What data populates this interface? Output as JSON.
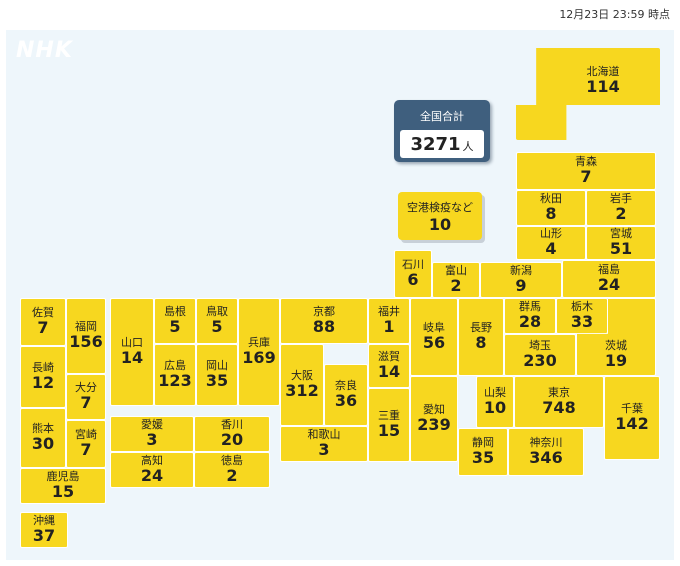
{
  "timestamp": "12月23日 23:59 時点",
  "logo": "NHK",
  "total": {
    "label": "全国合計",
    "value": "3271",
    "unit": "人"
  },
  "airport": {
    "name": "空港検疫など",
    "value": "10"
  },
  "prefectures": {
    "hokkaido": {
      "name": "北海道",
      "value": "114"
    },
    "aomori": {
      "name": "青森",
      "value": "7"
    },
    "akita": {
      "name": "秋田",
      "value": "8"
    },
    "iwate": {
      "name": "岩手",
      "value": "2"
    },
    "yamagata": {
      "name": "山形",
      "value": "4"
    },
    "miyagi": {
      "name": "宮城",
      "value": "51"
    },
    "ishikawa": {
      "name": "石川",
      "value": "6"
    },
    "toyama": {
      "name": "富山",
      "value": "2"
    },
    "niigata": {
      "name": "新潟",
      "value": "9"
    },
    "fukushima": {
      "name": "福島",
      "value": "24"
    },
    "saga": {
      "name": "佐賀",
      "value": "7"
    },
    "fukuoka": {
      "name": "福岡",
      "value": "156"
    },
    "nagasaki": {
      "name": "長崎",
      "value": "12"
    },
    "oita": {
      "name": "大分",
      "value": "7"
    },
    "kumamoto": {
      "name": "熊本",
      "value": "30"
    },
    "miyazaki": {
      "name": "宮崎",
      "value": "7"
    },
    "kagoshima": {
      "name": "鹿児島",
      "value": "15"
    },
    "okinawa": {
      "name": "沖縄",
      "value": "37"
    },
    "yamaguchi": {
      "name": "山口",
      "value": "14"
    },
    "shimane": {
      "name": "島根",
      "value": "5"
    },
    "tottori": {
      "name": "鳥取",
      "value": "5"
    },
    "hiroshima": {
      "name": "広島",
      "value": "123"
    },
    "okayama": {
      "name": "岡山",
      "value": "35"
    },
    "hyogo": {
      "name": "兵庫",
      "value": "169"
    },
    "kyoto": {
      "name": "京都",
      "value": "88"
    },
    "osaka": {
      "name": "大阪",
      "value": "312"
    },
    "nara": {
      "name": "奈良",
      "value": "36"
    },
    "wakayama": {
      "name": "和歌山",
      "value": "3"
    },
    "fukui": {
      "name": "福井",
      "value": "1"
    },
    "shiga": {
      "name": "滋賀",
      "value": "14"
    },
    "mie": {
      "name": "三重",
      "value": "15"
    },
    "gifu": {
      "name": "岐阜",
      "value": "56"
    },
    "aichi": {
      "name": "愛知",
      "value": "239"
    },
    "nagano": {
      "name": "長野",
      "value": "8"
    },
    "gunma": {
      "name": "群馬",
      "value": "28"
    },
    "tochigi": {
      "name": "栃木",
      "value": "33"
    },
    "saitama": {
      "name": "埼玉",
      "value": "230"
    },
    "ibaraki": {
      "name": "茨城",
      "value": "19"
    },
    "yamanashi": {
      "name": "山梨",
      "value": "10"
    },
    "tokyo": {
      "name": "東京",
      "value": "748"
    },
    "chiba": {
      "name": "千葉",
      "value": "142"
    },
    "shizuoka": {
      "name": "静岡",
      "value": "35"
    },
    "kanagawa": {
      "name": "神奈川",
      "value": "346"
    },
    "ehime": {
      "name": "愛媛",
      "value": "3"
    },
    "kagawa": {
      "name": "香川",
      "value": "20"
    },
    "kochi": {
      "name": "高知",
      "value": "24"
    },
    "tokushima": {
      "name": "徳島",
      "value": "2"
    }
  }
}
